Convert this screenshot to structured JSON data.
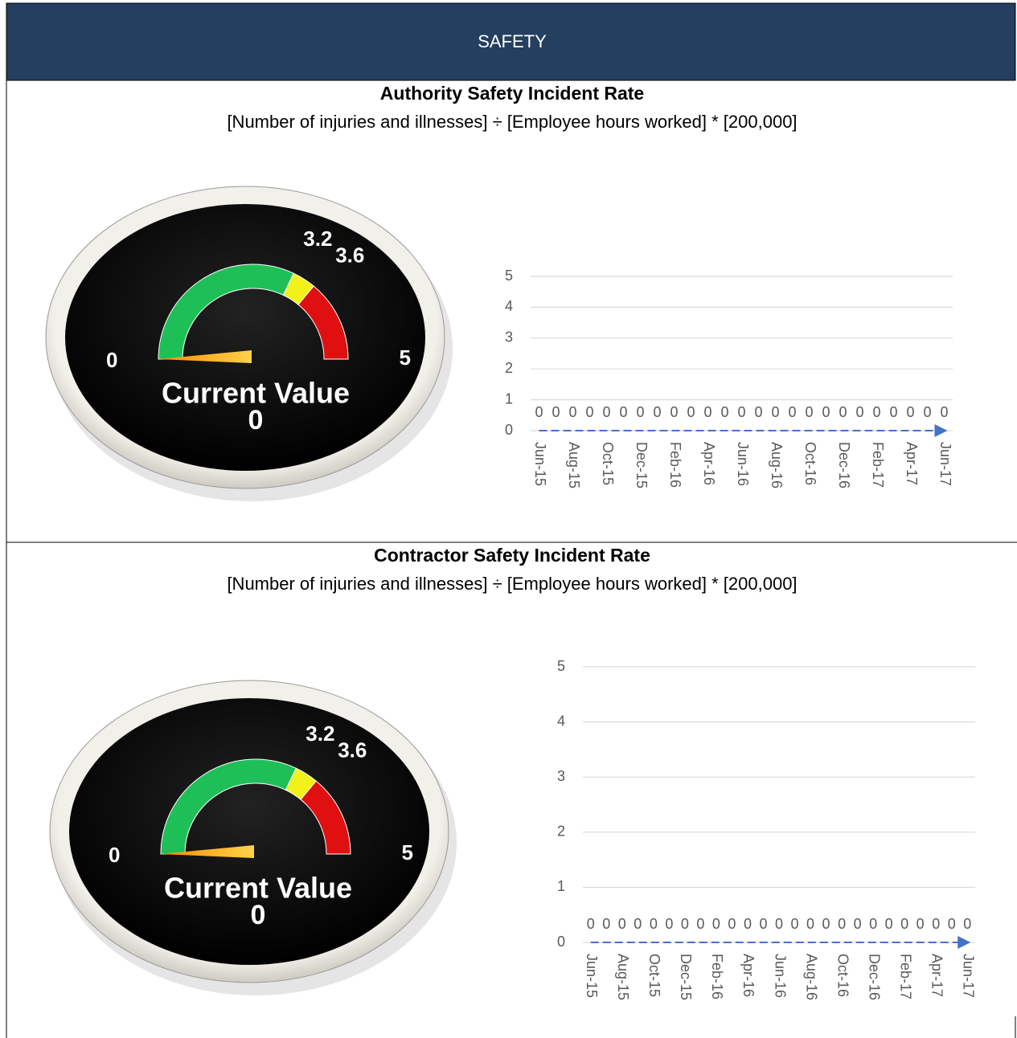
{
  "header": {
    "title": "SAFETY"
  },
  "sections": [
    {
      "title": "Authority Safety Incident Rate",
      "formula": "[Number of injuries and illnesses] ÷ [Employee hours worked] * [200,000]",
      "gauge": {
        "ticks": [
          0,
          3.2,
          3.6,
          5
        ],
        "label": "Current Value",
        "value": 0
      }
    },
    {
      "title": "Contractor Safety Incident Rate",
      "formula": "[Number of injuries and illnesses] ÷ [Employee hours worked] * [200,000]",
      "gauge": {
        "ticks": [
          0,
          3.2,
          3.6,
          5
        ],
        "label": "Current Value",
        "value": 0
      }
    }
  ],
  "chart_data": [
    {
      "type": "line",
      "categories": [
        "Jun-15",
        null,
        "Aug-15",
        null,
        "Oct-15",
        null,
        "Dec-15",
        null,
        "Feb-16",
        null,
        "Apr-16",
        null,
        "Jun-16",
        null,
        "Aug-16",
        null,
        "Oct-16",
        null,
        "Dec-16",
        null,
        "Feb-17",
        null,
        "Apr-17",
        null,
        "Jun-17"
      ],
      "values": [
        0,
        0,
        0,
        0,
        0,
        0,
        0,
        0,
        0,
        0,
        0,
        0,
        0,
        0,
        0,
        0,
        0,
        0,
        0,
        0,
        0,
        0,
        0,
        0,
        0
      ],
      "color": "#4472c4",
      "ylim": [
        0,
        5
      ],
      "yticks": [
        0,
        1,
        2,
        3,
        4,
        5
      ],
      "grid": true
    },
    {
      "type": "line",
      "categories": [
        "Jun-15",
        null,
        "Aug-15",
        null,
        "Oct-15",
        null,
        "Dec-15",
        null,
        "Feb-16",
        null,
        "Apr-16",
        null,
        "Jun-16",
        null,
        "Aug-16",
        null,
        "Oct-16",
        null,
        "Dec-16",
        null,
        "Feb-17",
        null,
        "Apr-17",
        null,
        "Jun-17"
      ],
      "values": [
        0,
        0,
        0,
        0,
        0,
        0,
        0,
        0,
        0,
        0,
        0,
        0,
        0,
        0,
        0,
        0,
        0,
        0,
        0,
        0,
        0,
        0,
        0,
        0,
        0
      ],
      "color": "#4472c4",
      "ylim": [
        0,
        5
      ],
      "yticks": [
        0,
        1,
        2,
        3,
        4,
        5
      ],
      "grid": true
    }
  ]
}
